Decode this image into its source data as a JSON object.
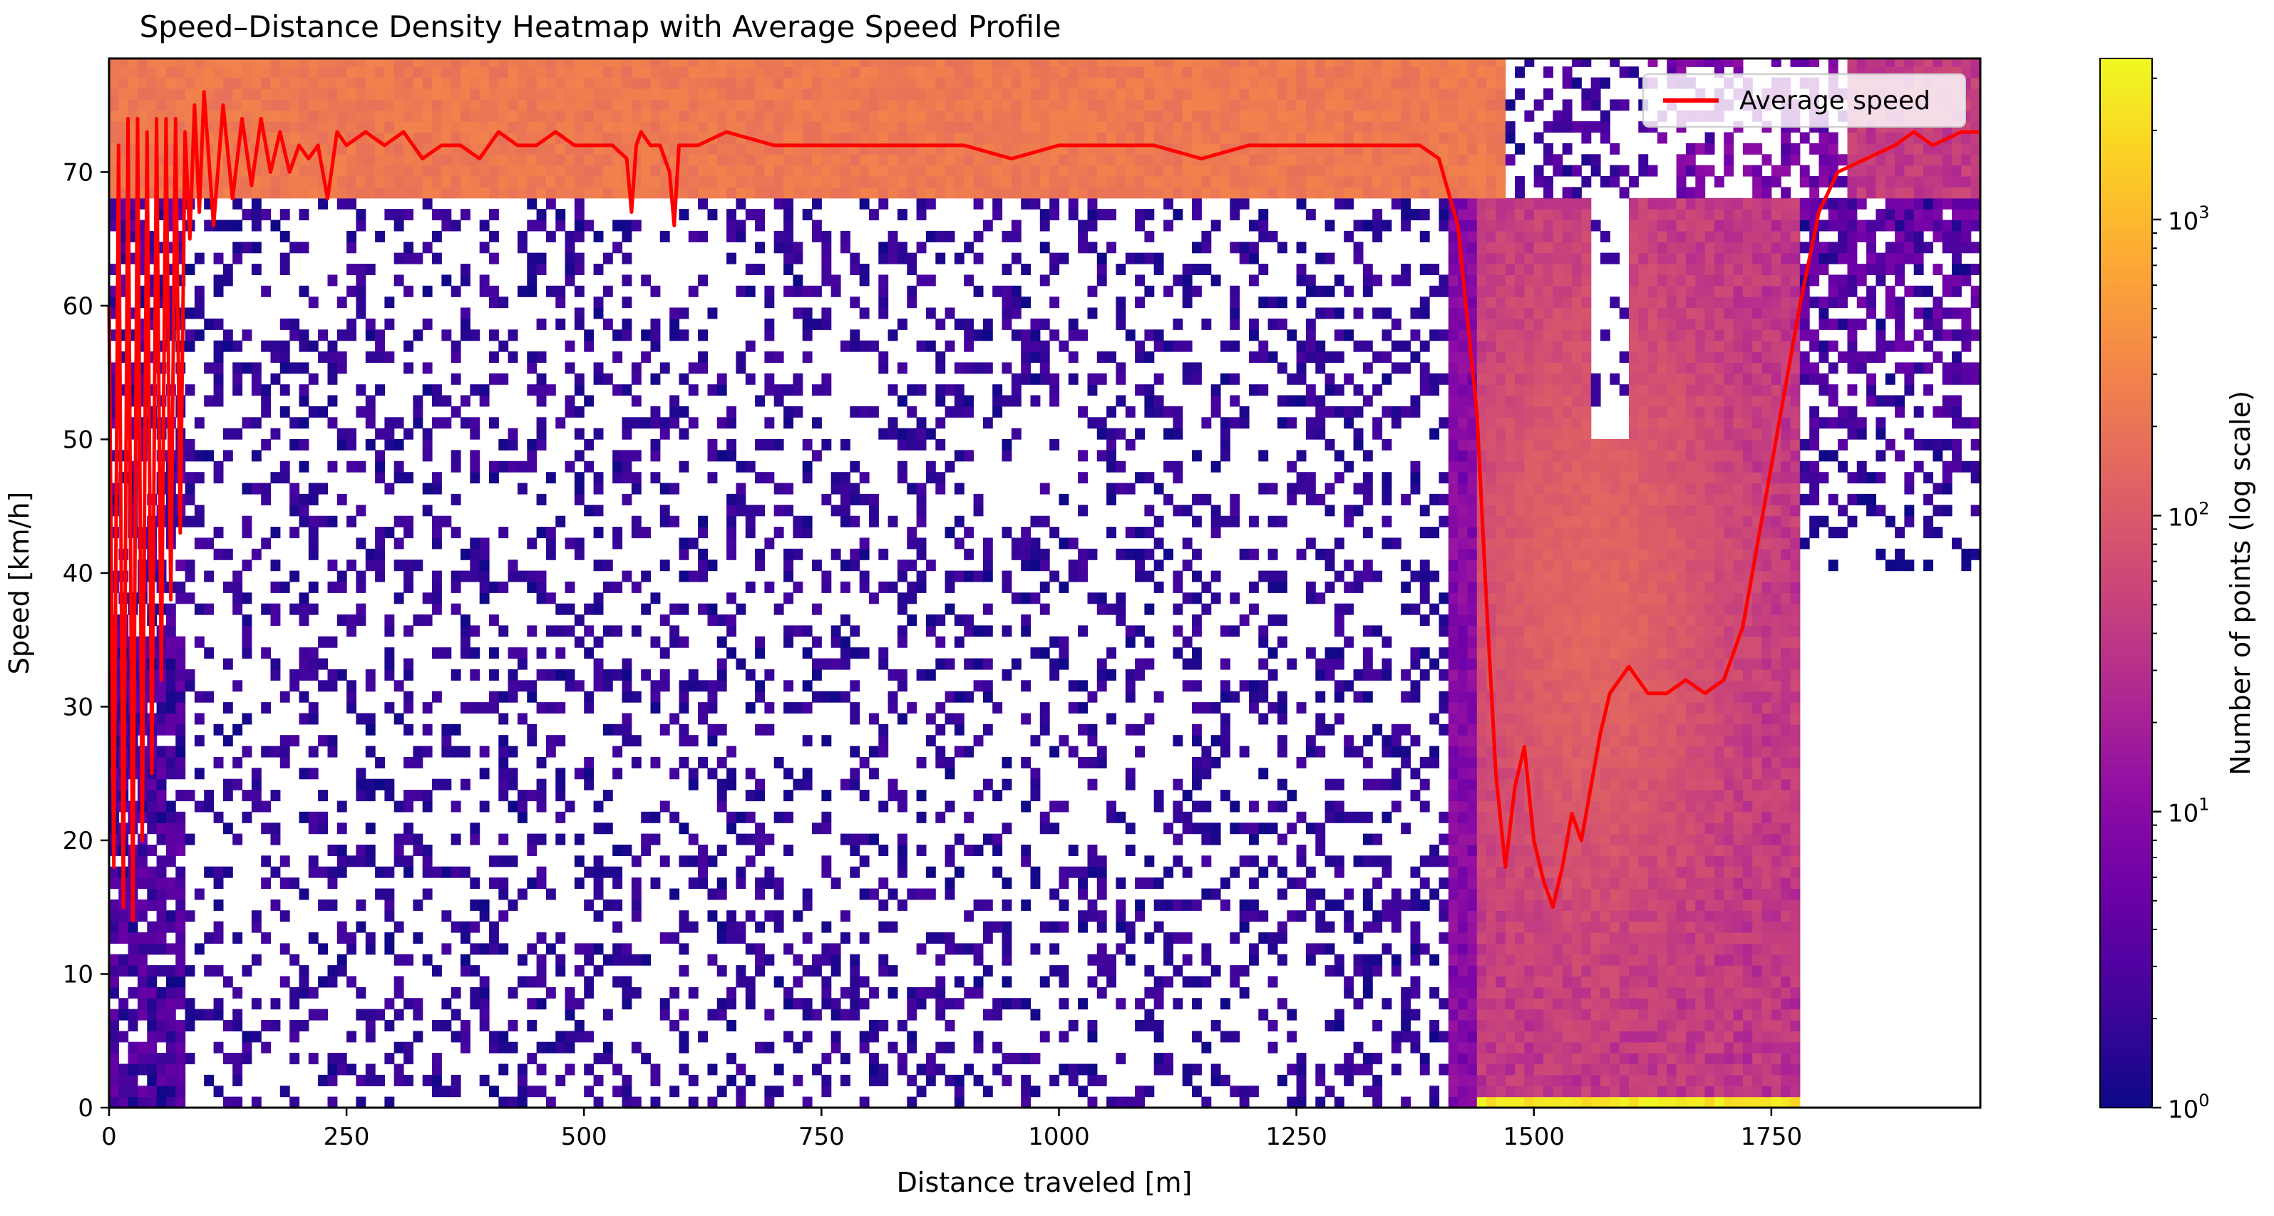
{
  "chart_data": {
    "type": "heatmap",
    "title": "Speed–Distance Density Heatmap with Average Speed Profile",
    "xlabel": "Distance traveled [m]",
    "ylabel": "Speed [km/h]",
    "xlim": [
      0,
      1970
    ],
    "ylim": [
      0,
      78.5
    ],
    "xticks": [
      0,
      250,
      500,
      750,
      1000,
      1250,
      1500,
      1750
    ],
    "yticks": [
      0,
      10,
      20,
      30,
      40,
      50,
      60,
      70
    ],
    "grid": false,
    "legend_position": "top-right",
    "legend": [
      "Average speed"
    ],
    "colorbar": {
      "label": "Number of points (log scale)",
      "scale": "log",
      "range": [
        1,
        3500
      ],
      "ticks": [
        {
          "base": "10",
          "exp": "0",
          "value": 1
        },
        {
          "base": "10",
          "exp": "1",
          "value": 10
        },
        {
          "base": "10",
          "exp": "2",
          "value": 100
        },
        {
          "base": "10",
          "exp": "3",
          "value": 1000
        }
      ],
      "colormap": "plasma"
    },
    "density_regions": [
      {
        "region": "cruise band",
        "x_range": [
          0,
          1470
        ],
        "y_range": [
          68,
          78
        ],
        "approx_count": 250
      },
      {
        "region": "braking zone",
        "x_range": [
          1440,
          1780
        ],
        "y_range": [
          0,
          68
        ],
        "approx_count": 60
      },
      {
        "region": "stopped",
        "x_range": [
          1440,
          1780
        ],
        "y_range": [
          0,
          1
        ],
        "approx_count": 3000
      },
      {
        "region": "acceleration band",
        "x_range": [
          1780,
          1970
        ],
        "y_range": [
          55,
          72
        ],
        "approx_count": 20
      },
      {
        "region": "sparse outliers",
        "x_range": [
          0,
          1440
        ],
        "y_range": [
          0,
          68
        ],
        "approx_count": 1
      }
    ],
    "series": [
      {
        "name": "Average speed",
        "color": "#ff0000",
        "x": [
          0,
          5,
          10,
          15,
          20,
          25,
          30,
          35,
          40,
          45,
          50,
          55,
          60,
          65,
          70,
          75,
          80,
          85,
          90,
          95,
          100,
          110,
          120,
          130,
          140,
          150,
          160,
          170,
          180,
          190,
          200,
          210,
          220,
          230,
          240,
          250,
          270,
          290,
          310,
          330,
          350,
          370,
          390,
          410,
          430,
          450,
          470,
          490,
          510,
          530,
          545,
          550,
          555,
          560,
          570,
          580,
          590,
          595,
          600,
          620,
          650,
          700,
          750,
          800,
          850,
          900,
          950,
          1000,
          1050,
          1100,
          1150,
          1200,
          1250,
          1300,
          1350,
          1380,
          1400,
          1420,
          1440,
          1450,
          1460,
          1470,
          1480,
          1490,
          1500,
          1510,
          1520,
          1530,
          1540,
          1550,
          1560,
          1570,
          1580,
          1590,
          1600,
          1620,
          1640,
          1660,
          1680,
          1700,
          1720,
          1740,
          1760,
          1780,
          1800,
          1820,
          1850,
          1880,
          1900,
          1920,
          1950,
          1970
        ],
        "y": [
          60,
          18,
          72,
          15,
          74,
          14,
          74,
          20,
          73,
          25,
          74,
          32,
          74,
          38,
          74,
          43,
          73,
          65,
          75,
          67,
          76,
          66,
          75,
          68,
          74,
          69,
          74,
          70,
          73,
          70,
          72,
          71,
          72,
          68,
          73,
          72,
          73,
          72,
          73,
          71,
          72,
          72,
          71,
          73,
          72,
          72,
          73,
          72,
          72,
          72,
          71,
          67,
          72,
          73,
          72,
          72,
          70,
          66,
          72,
          72,
          73,
          72,
          72,
          72,
          72,
          72,
          71,
          72,
          72,
          72,
          71,
          72,
          72,
          72,
          72,
          72,
          71,
          66,
          52,
          38,
          25,
          18,
          24,
          27,
          20,
          17,
          15,
          18,
          22,
          20,
          24,
          28,
          31,
          32,
          33,
          31,
          31,
          32,
          31,
          32,
          36,
          44,
          52,
          60,
          67,
          70,
          71,
          72,
          73,
          72,
          73,
          73
        ]
      }
    ]
  }
}
